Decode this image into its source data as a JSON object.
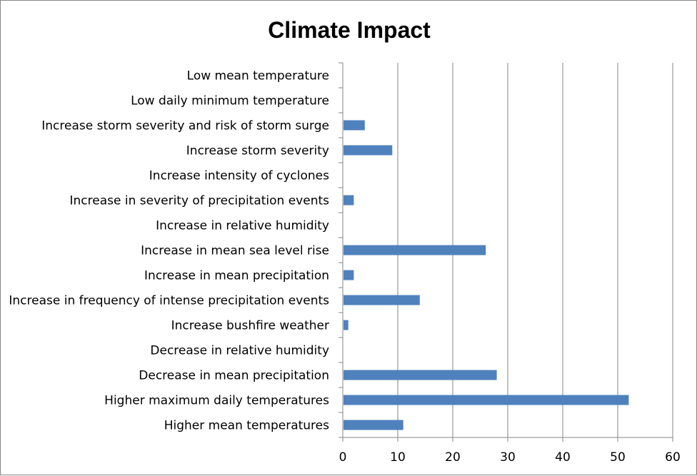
{
  "chart_data": {
    "type": "bar",
    "orientation": "horizontal",
    "title": "Climate Impact",
    "xlabel": "",
    "ylabel": "",
    "xlim": [
      0,
      60
    ],
    "x_ticks": [
      0,
      10,
      20,
      30,
      40,
      50,
      60
    ],
    "grid": "vertical",
    "legend": "none",
    "bar_color": "#4F81BD",
    "categories": [
      "Low mean temperature",
      "Low daily minimum temperature",
      "Increase storm severity and risk of storm surge",
      "Increase storm severity",
      "Increase intensity of cyclones",
      "Increase in severity of precipitation events",
      "Increase in relative humidity",
      "Increase in mean sea level rise",
      "Increase in mean precipitation",
      "Increase in frequency of intense precipitation events",
      "Increase bushfire weather",
      "Decrease in relative humidity",
      "Decrease in mean precipitation",
      "Higher maximum daily temperatures",
      "Higher mean temperatures"
    ],
    "values": [
      0,
      0,
      4,
      9,
      0,
      2,
      0,
      26,
      2,
      14,
      1,
      0,
      28,
      52,
      11
    ]
  }
}
